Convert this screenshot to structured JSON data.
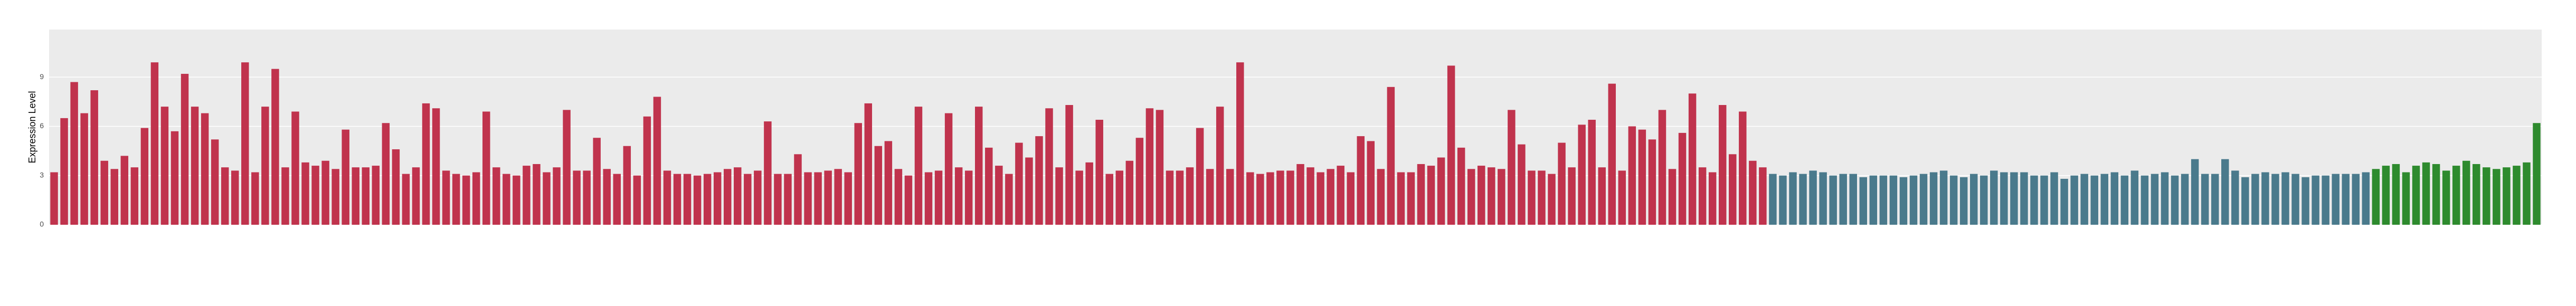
{
  "chart_data": {
    "type": "bar",
    "y_label": "Expression Level",
    "ylim": [
      0,
      11.9
    ],
    "yticks": [
      0,
      3,
      6,
      9
    ],
    "grid": true,
    "groups": [
      {
        "color": "#c0334d",
        "values": [
          3.2,
          6.5,
          8.7,
          6.8,
          8.2,
          3.9,
          3.4,
          4.2,
          3.5,
          5.9,
          9.9,
          7.2,
          5.7,
          9.2,
          7.2,
          6.8,
          5.2,
          3.5,
          3.3,
          9.9,
          3.2,
          7.2,
          9.5,
          3.5,
          6.9,
          3.8,
          3.6,
          3.9,
          3.4,
          5.8,
          3.5,
          3.5,
          3.6,
          6.2,
          4.6,
          3.1,
          3.5,
          7.4,
          7.1,
          3.3,
          3.1,
          3.0,
          3.2,
          6.9,
          3.5,
          3.1,
          3.0,
          3.6,
          3.7,
          3.2,
          3.5,
          7.0,
          3.3,
          3.3,
          5.3,
          3.4,
          3.1,
          4.8,
          3.0,
          6.6,
          7.8,
          3.3,
          3.1,
          3.1,
          3.0,
          3.1,
          3.2,
          3.4,
          3.5,
          3.1,
          3.3,
          6.3,
          3.1,
          3.1,
          4.3,
          3.2,
          3.2,
          3.3,
          3.4,
          3.2,
          6.2,
          7.4,
          4.8,
          5.1,
          3.4,
          3.0,
          7.2,
          3.2,
          3.3,
          6.8,
          3.5,
          3.3,
          7.2,
          4.7,
          3.6,
          3.1,
          5.0,
          4.1,
          5.4,
          7.1,
          3.5,
          7.3,
          3.3,
          3.8,
          6.4,
          3.1,
          3.3,
          3.9,
          5.3,
          7.1,
          7.0,
          3.3,
          3.3,
          3.5,
          5.9,
          3.4,
          7.2,
          3.4,
          9.9,
          3.2,
          3.1,
          3.2,
          3.3,
          3.3,
          3.7,
          3.5,
          3.2,
          3.4,
          3.6,
          3.2,
          5.4,
          5.1,
          3.4,
          8.4,
          3.2,
          3.2,
          3.7,
          3.6,
          4.1,
          9.7,
          4.7,
          3.4,
          3.6,
          3.5,
          3.4,
          7.0,
          4.9,
          3.3,
          3.3,
          3.1,
          5.0,
          3.5,
          6.1,
          6.4,
          3.5,
          8.6,
          3.3,
          6.0,
          5.8,
          5.2,
          7.0,
          3.4,
          5.6,
          8.0,
          3.5,
          3.2,
          7.3,
          4.3,
          6.9,
          3.9,
          3.5
        ]
      },
      {
        "color": "#4a7a8c",
        "values": [
          3.1,
          3.0,
          3.2,
          3.1,
          3.3,
          3.2,
          3.0,
          3.1,
          3.1,
          2.9,
          3.0,
          3.0,
          3.0,
          2.9,
          3.0,
          3.1,
          3.2,
          3.3,
          3.0,
          2.9,
          3.1,
          3.0,
          3.3,
          3.2,
          3.2,
          3.2,
          3.0,
          3.0,
          3.2,
          2.8,
          3.0,
          3.1,
          3.0,
          3.1,
          3.2,
          3.0,
          3.3,
          3.0,
          3.1,
          3.2,
          3.0,
          3.1,
          4.0,
          3.1,
          3.1,
          4.0,
          3.3,
          2.9,
          3.1,
          3.2,
          3.1,
          3.2,
          3.1,
          2.9,
          3.0,
          3.0,
          3.1,
          3.1,
          3.1,
          3.2
        ]
      },
      {
        "color": "#2e8b2e",
        "values": [
          3.4,
          3.6,
          3.7,
          3.2,
          3.6,
          3.8,
          3.7,
          3.3,
          3.6,
          3.9,
          3.7,
          3.5,
          3.4,
          3.5,
          3.6,
          3.8,
          6.2
        ]
      }
    ]
  }
}
